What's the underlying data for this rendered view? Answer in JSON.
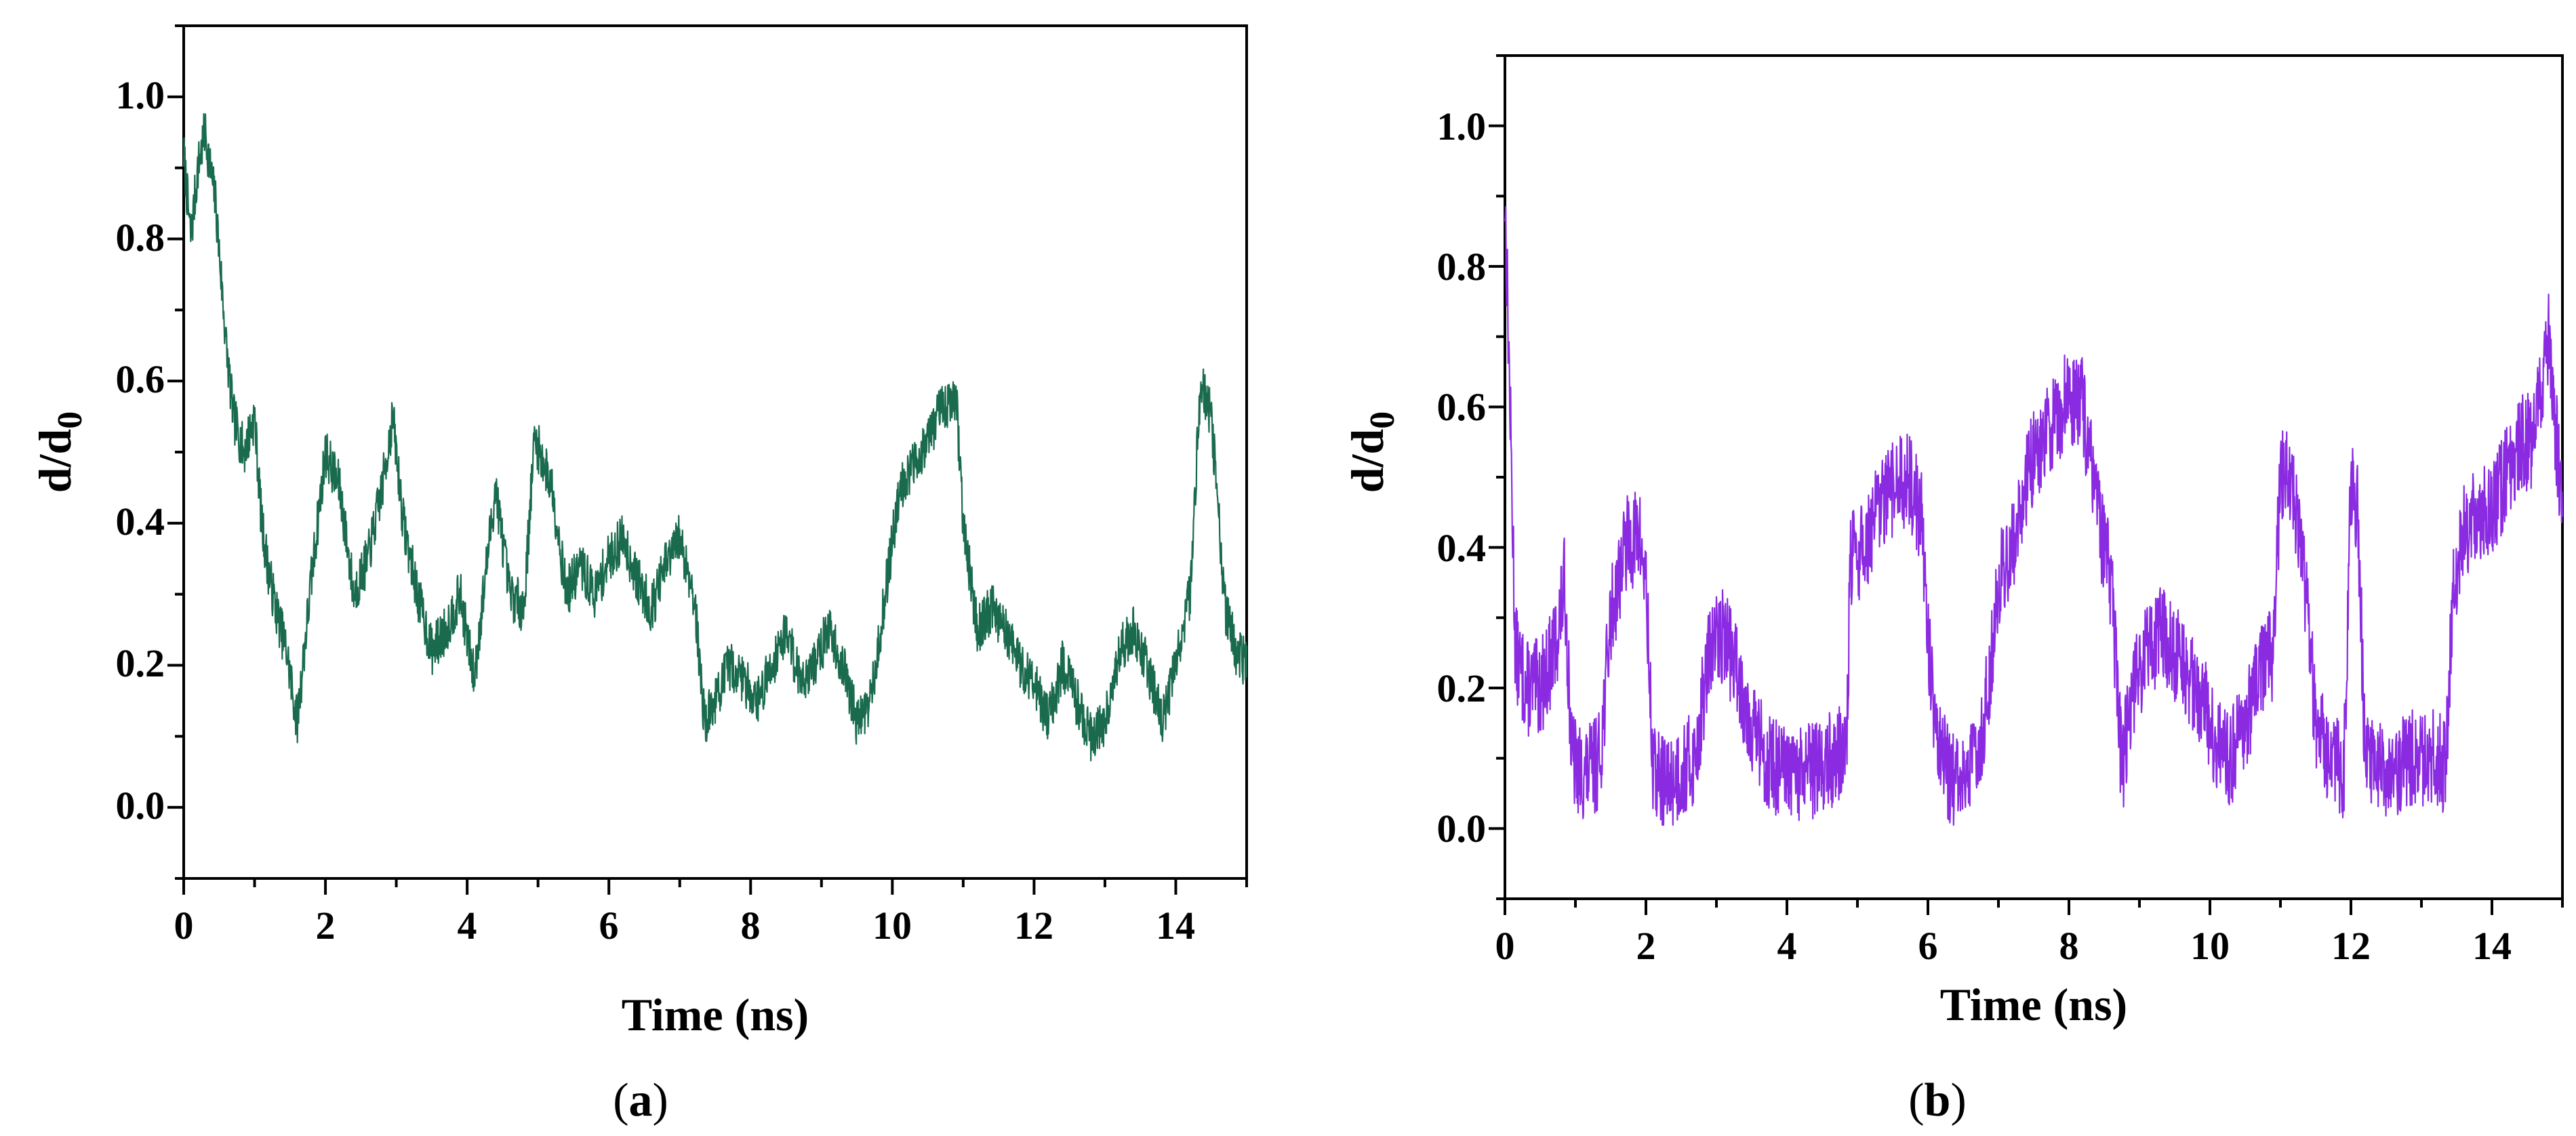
{
  "chart_data": [
    {
      "panel": "a",
      "panel_label": "a",
      "type": "line",
      "title": "",
      "xlabel": "Time (ns)",
      "ylabel_main": "d/d",
      "ylabel_sub": "0",
      "xlim": [
        0,
        15
      ],
      "ylim": [
        -0.1,
        1.1
      ],
      "xticks": [
        0,
        2,
        4,
        6,
        8,
        10,
        12,
        14
      ],
      "yticks": [
        0.0,
        0.2,
        0.4,
        0.6,
        0.8,
        1.0
      ],
      "xtick_labels": [
        "0",
        "2",
        "4",
        "6",
        "8",
        "10",
        "12",
        "14"
      ],
      "ytick_labels": [
        "0.0",
        "0.2",
        "0.4",
        "0.6",
        "0.8",
        "1.0"
      ],
      "color": "#1a6b4e",
      "noise": 0.035,
      "seed": 7,
      "series": [
        {
          "name": "d/d0",
          "x": [
            0,
            0.1,
            0.2,
            0.3,
            0.45,
            0.6,
            0.7,
            0.85,
            1.0,
            1.1,
            1.2,
            1.3,
            1.45,
            1.6,
            1.8,
            2.0,
            2.2,
            2.4,
            2.6,
            2.8,
            2.95,
            3.1,
            3.3,
            3.5,
            3.7,
            3.9,
            4.1,
            4.25,
            4.4,
            4.6,
            4.8,
            4.95,
            5.2,
            5.4,
            5.6,
            5.8,
            6.0,
            6.2,
            6.4,
            6.6,
            6.8,
            7.0,
            7.2,
            7.35,
            7.5,
            7.7,
            7.9,
            8.1,
            8.3,
            8.5,
            8.7,
            8.9,
            9.1,
            9.3,
            9.5,
            9.7,
            9.9,
            10.1,
            10.3,
            10.5,
            10.7,
            10.9,
            11.0,
            11.2,
            11.4,
            11.6,
            11.8,
            12.0,
            12.2,
            12.4,
            12.6,
            12.8,
            13.0,
            13.2,
            13.4,
            13.6,
            13.8,
            14.0,
            14.2,
            14.35,
            14.5,
            14.7,
            14.85,
            15.0
          ],
          "y": [
            0.92,
            0.8,
            0.9,
            0.95,
            0.85,
            0.65,
            0.55,
            0.5,
            0.55,
            0.4,
            0.33,
            0.28,
            0.22,
            0.12,
            0.32,
            0.5,
            0.45,
            0.3,
            0.35,
            0.45,
            0.55,
            0.4,
            0.3,
            0.22,
            0.25,
            0.3,
            0.18,
            0.32,
            0.45,
            0.3,
            0.28,
            0.52,
            0.45,
            0.3,
            0.34,
            0.3,
            0.35,
            0.38,
            0.32,
            0.28,
            0.34,
            0.38,
            0.3,
            0.12,
            0.15,
            0.2,
            0.18,
            0.15,
            0.2,
            0.25,
            0.18,
            0.2,
            0.25,
            0.2,
            0.12,
            0.15,
            0.3,
            0.45,
            0.48,
            0.52,
            0.56,
            0.58,
            0.4,
            0.25,
            0.28,
            0.25,
            0.2,
            0.18,
            0.12,
            0.2,
            0.15,
            0.1,
            0.12,
            0.22,
            0.25,
            0.2,
            0.12,
            0.2,
            0.3,
            0.6,
            0.55,
            0.28,
            0.22,
            0.2
          ]
        }
      ]
    },
    {
      "panel": "b",
      "panel_label": "b",
      "type": "line",
      "title": "",
      "xlabel": "Time (ns)",
      "ylabel_main": "d/d",
      "ylabel_sub": "0",
      "xlim": [
        0,
        15
      ],
      "ylim": [
        -0.1,
        1.1
      ],
      "xticks": [
        0,
        2,
        4,
        6,
        8,
        10,
        12,
        14
      ],
      "yticks": [
        0.0,
        0.2,
        0.4,
        0.6,
        0.8,
        1.0
      ],
      "xtick_labels": [
        "0",
        "2",
        "4",
        "6",
        "8",
        "10",
        "12",
        "14"
      ],
      "ytick_labels": [
        "0.0",
        "0.2",
        "0.4",
        "0.6",
        "0.8",
        "1.0"
      ],
      "color": "#8a2be2",
      "noise": 0.07,
      "seed": 13,
      "series": [
        {
          "name": "d/d0",
          "x": [
            0,
            0.05,
            0.15,
            0.3,
            0.5,
            0.7,
            0.85,
            0.95,
            1.05,
            1.2,
            1.35,
            1.5,
            1.7,
            1.9,
            2.0,
            2.1,
            2.3,
            2.5,
            2.7,
            2.9,
            3.1,
            3.3,
            3.5,
            3.7,
            3.9,
            4.1,
            4.3,
            4.5,
            4.7,
            4.85,
            4.9,
            5.1,
            5.3,
            5.5,
            5.7,
            5.9,
            6.05,
            6.2,
            6.4,
            6.6,
            6.8,
            7.0,
            7.2,
            7.4,
            7.6,
            7.8,
            8.0,
            8.2,
            8.4,
            8.6,
            8.75,
            8.9,
            9.1,
            9.3,
            9.5,
            9.7,
            9.9,
            10.1,
            10.3,
            10.5,
            10.7,
            10.9,
            11.0,
            11.1,
            11.3,
            11.5,
            11.7,
            11.8,
            11.9,
            12.0,
            12.1,
            12.2,
            12.4,
            12.6,
            12.8,
            13.0,
            13.2,
            13.35,
            13.45,
            13.6,
            13.8,
            14.0,
            14.2,
            14.4,
            14.6,
            14.8,
            15.0
          ],
          "y": [
            0.9,
            0.7,
            0.25,
            0.2,
            0.2,
            0.25,
            0.35,
            0.1,
            0.08,
            0.08,
            0.1,
            0.3,
            0.4,
            0.42,
            0.35,
            0.08,
            0.06,
            0.08,
            0.1,
            0.25,
            0.28,
            0.22,
            0.15,
            0.1,
            0.08,
            0.07,
            0.08,
            0.09,
            0.1,
            0.12,
            0.38,
            0.4,
            0.45,
            0.48,
            0.5,
            0.45,
            0.2,
            0.1,
            0.06,
            0.08,
            0.15,
            0.35,
            0.4,
            0.5,
            0.55,
            0.58,
            0.62,
            0.6,
            0.45,
            0.35,
            0.08,
            0.2,
            0.25,
            0.28,
            0.25,
            0.22,
            0.18,
            0.12,
            0.1,
            0.15,
            0.22,
            0.25,
            0.5,
            0.52,
            0.4,
            0.15,
            0.1,
            0.09,
            0.08,
            0.5,
            0.45,
            0.1,
            0.08,
            0.08,
            0.1,
            0.1,
            0.1,
            0.09,
            0.35,
            0.42,
            0.45,
            0.45,
            0.5,
            0.55,
            0.55,
            0.7,
            0.45
          ]
        }
      ]
    }
  ]
}
